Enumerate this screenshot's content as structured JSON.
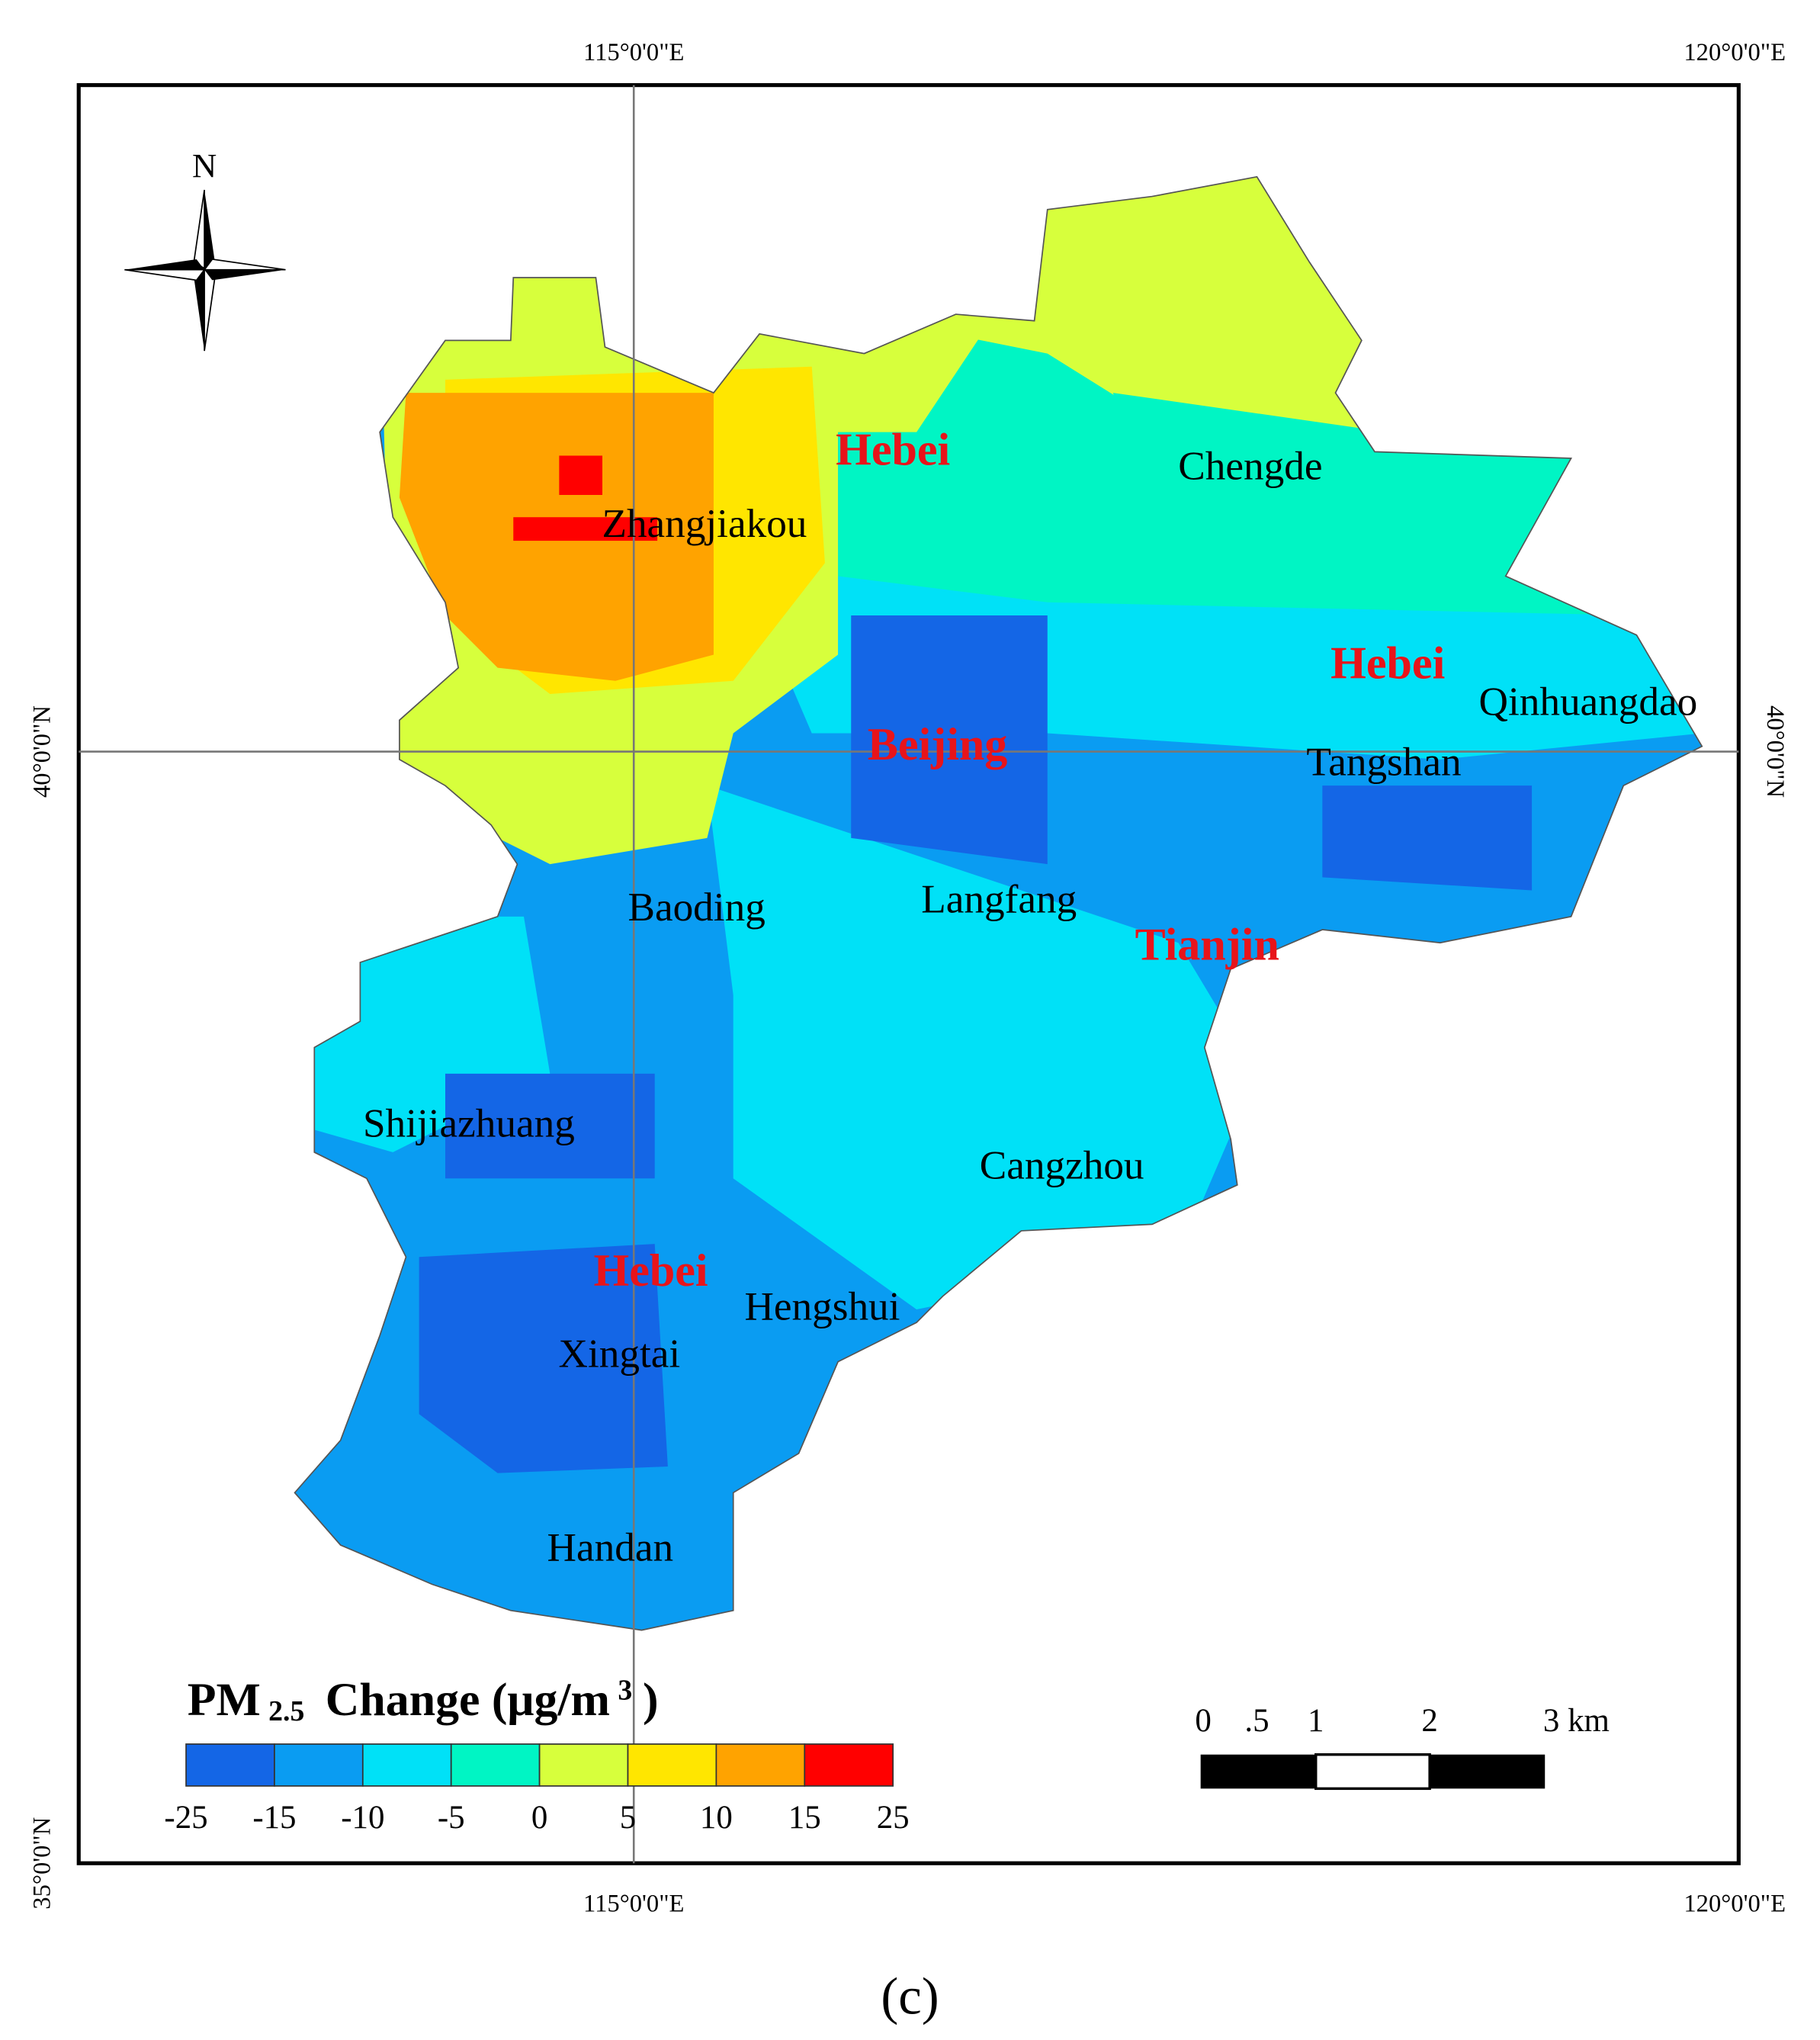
{
  "map": {
    "axes": {
      "top": [
        "115°0'0\"E",
        "120°0'0\"E"
      ],
      "bottom": [
        "115°0'0\"E",
        "120°0'0\"E"
      ],
      "left": [
        "40°0'0\"N",
        "35°0'0\"N"
      ],
      "right": [
        "40°0'0\"N"
      ]
    },
    "north": "N",
    "provinces": [
      "Hebei",
      "Hebei",
      "Beijing",
      "Tianjin",
      "Hebei"
    ],
    "cities": [
      "Zhangjiakou",
      "Chengde",
      "Qinhuangdao",
      "Tangshan",
      "Baoding",
      "Langfang",
      "Shijiazhuang",
      "Cangzhou",
      "Hengshui",
      "Xingtai",
      "Handan"
    ],
    "legend": {
      "title": [
        "PM",
        "2.5",
        "Change (μg/m",
        "3",
        ")"
      ],
      "colors": [
        "#1466e6",
        "#0a9cf2",
        "#00e1f7",
        "#00f5c4",
        "#d7ff3c",
        "#ffe600",
        "#ffa300",
        "#ff0000"
      ],
      "ticks": [
        -25,
        -15,
        -10,
        -5,
        0,
        5,
        10,
        15,
        25
      ]
    },
    "scale_bar": [
      "0",
      ".5",
      "1",
      "2",
      "3 km"
    ],
    "caption": "(c)"
  }
}
